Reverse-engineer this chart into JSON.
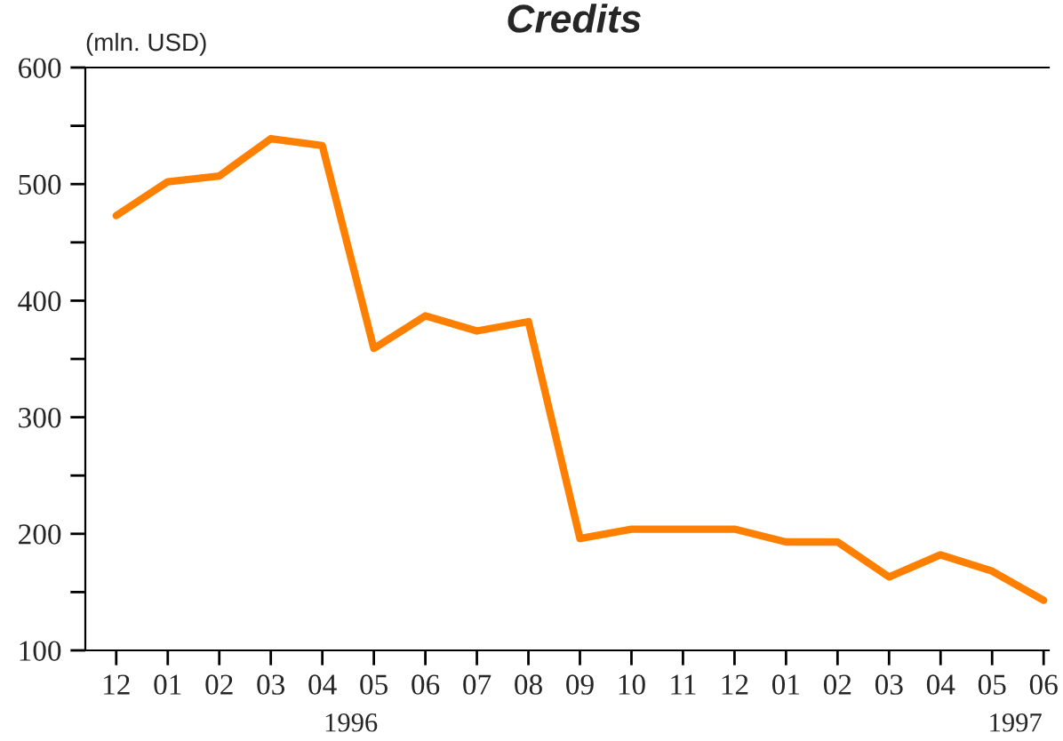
{
  "chart_data": {
    "type": "line",
    "title": "Credits",
    "ylabel": "(mln. USD)",
    "categories": [
      "12",
      "01",
      "02",
      "03",
      "04",
      "05",
      "06",
      "07",
      "08",
      "09",
      "10",
      "11",
      "12",
      "01",
      "02",
      "03",
      "04",
      "05",
      "06"
    ],
    "series": [
      {
        "color": "#ff8000",
        "values": [
          473,
          502,
          507,
          539,
          533,
          359,
          387,
          374,
          382,
          196,
          204,
          204,
          204,
          193,
          193,
          163,
          182,
          168,
          143
        ]
      }
    ],
    "ylim": [
      100,
      600
    ],
    "yticks": [
      100,
      {
        "value": 150,
        "label": null
      },
      200,
      {
        "value": 250,
        "label": null
      },
      300,
      {
        "value": 350,
        "label": null
      },
      400,
      {
        "value": 450,
        "label": null
      },
      500,
      {
        "value": 550,
        "label": null
      },
      600
    ],
    "annotations": [
      "1996",
      "1997"
    ],
    "grid": false,
    "marker": "none",
    "line_style": "solid"
  }
}
